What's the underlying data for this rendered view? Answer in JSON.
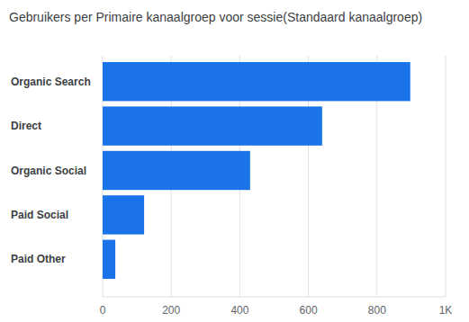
{
  "chart_data": {
    "type": "bar",
    "orientation": "horizontal",
    "title": "Gebruikers per Primaire kanaalgroep voor sessie(Standaard kanaalgroep)",
    "categories": [
      "Organic Search",
      "Direct",
      "Organic Social",
      "Paid Social",
      "Paid Other"
    ],
    "values": [
      897,
      640,
      430,
      121,
      37
    ],
    "color": "#1a73e8",
    "xlim": [
      0,
      1000
    ],
    "xticks": [
      0,
      200,
      400,
      600,
      800,
      {
        "value": 1000,
        "label": "1K"
      }
    ],
    "grid": true
  }
}
